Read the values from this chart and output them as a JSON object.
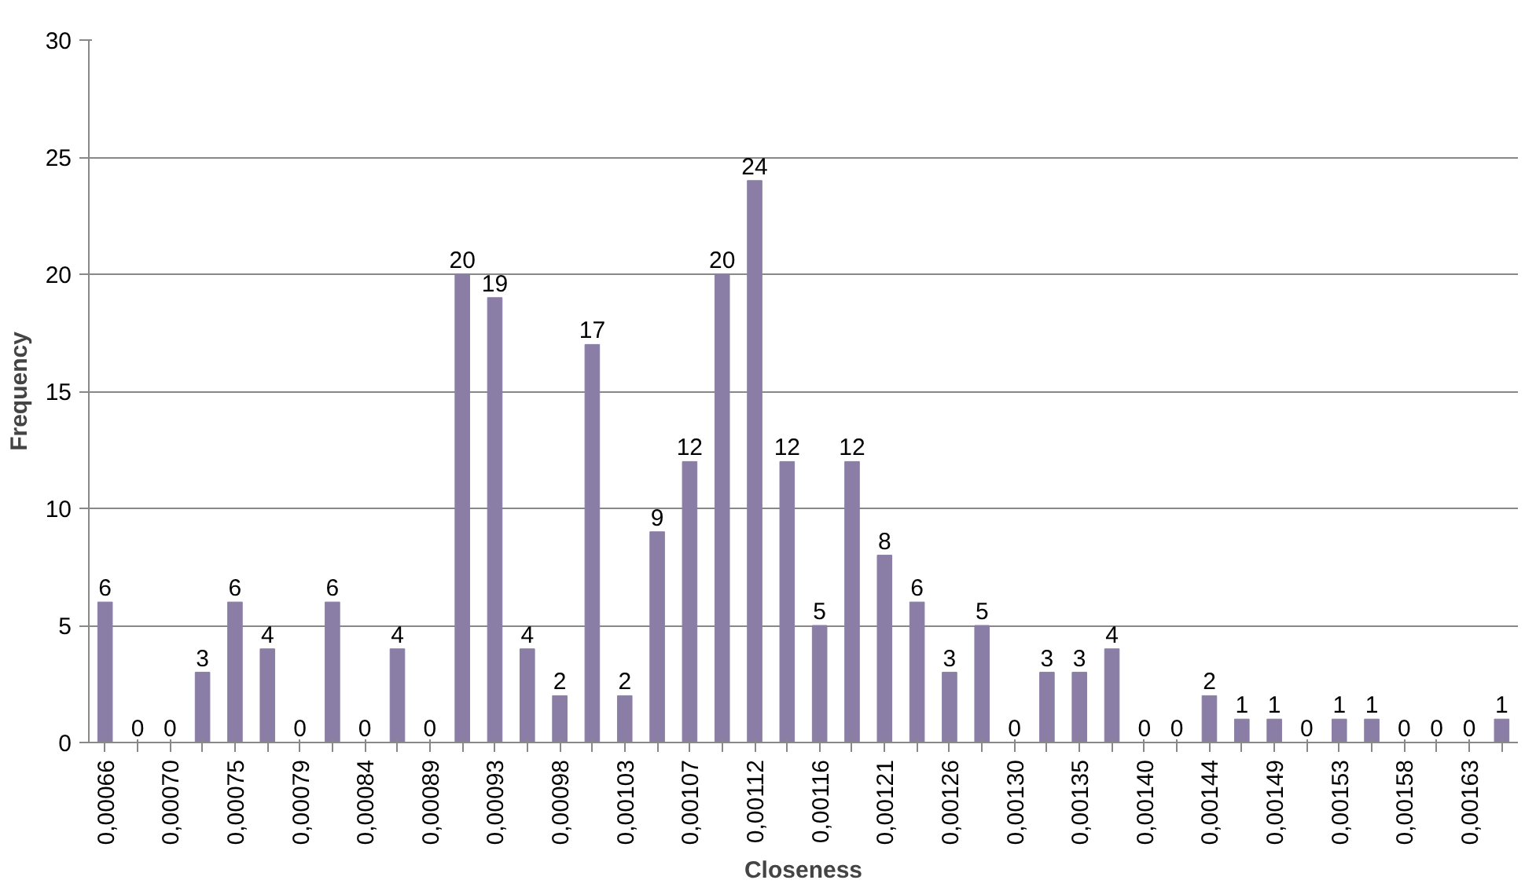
{
  "chart_data": {
    "type": "bar",
    "xlabel": "Closeness",
    "ylabel": "Frequency",
    "categories": [
      "0,00066",
      null,
      "0,00070",
      null,
      "0,00075",
      null,
      "0,00079",
      null,
      "0,00084",
      null,
      "0,00089",
      null,
      "0,00093",
      null,
      "0,00098",
      null,
      "0,00103",
      null,
      "0,00107",
      null,
      "0,00112",
      null,
      "0,00116",
      null,
      "0,00121",
      null,
      "0,00126",
      null,
      "0,00130",
      null,
      "0,00135",
      null,
      "0,00140",
      null,
      "0,00144",
      null,
      "0,00149",
      null,
      "0,00153",
      null,
      "0,00158",
      null,
      "0,00163",
      null
    ],
    "values": [
      6,
      0,
      0,
      3,
      6,
      4,
      0,
      6,
      0,
      4,
      0,
      20,
      19,
      4,
      2,
      17,
      2,
      9,
      12,
      20,
      24,
      12,
      5,
      12,
      8,
      6,
      3,
      5,
      0,
      3,
      3,
      4,
      0,
      0,
      2,
      1,
      1,
      0,
      1,
      1,
      0,
      0,
      0,
      1
    ],
    "color": "#8a7ea6",
    "ylim": [
      0,
      30
    ],
    "yticks": [
      0,
      5,
      10,
      15,
      20,
      25,
      30
    ],
    "grid": "y",
    "data_labels": true
  }
}
